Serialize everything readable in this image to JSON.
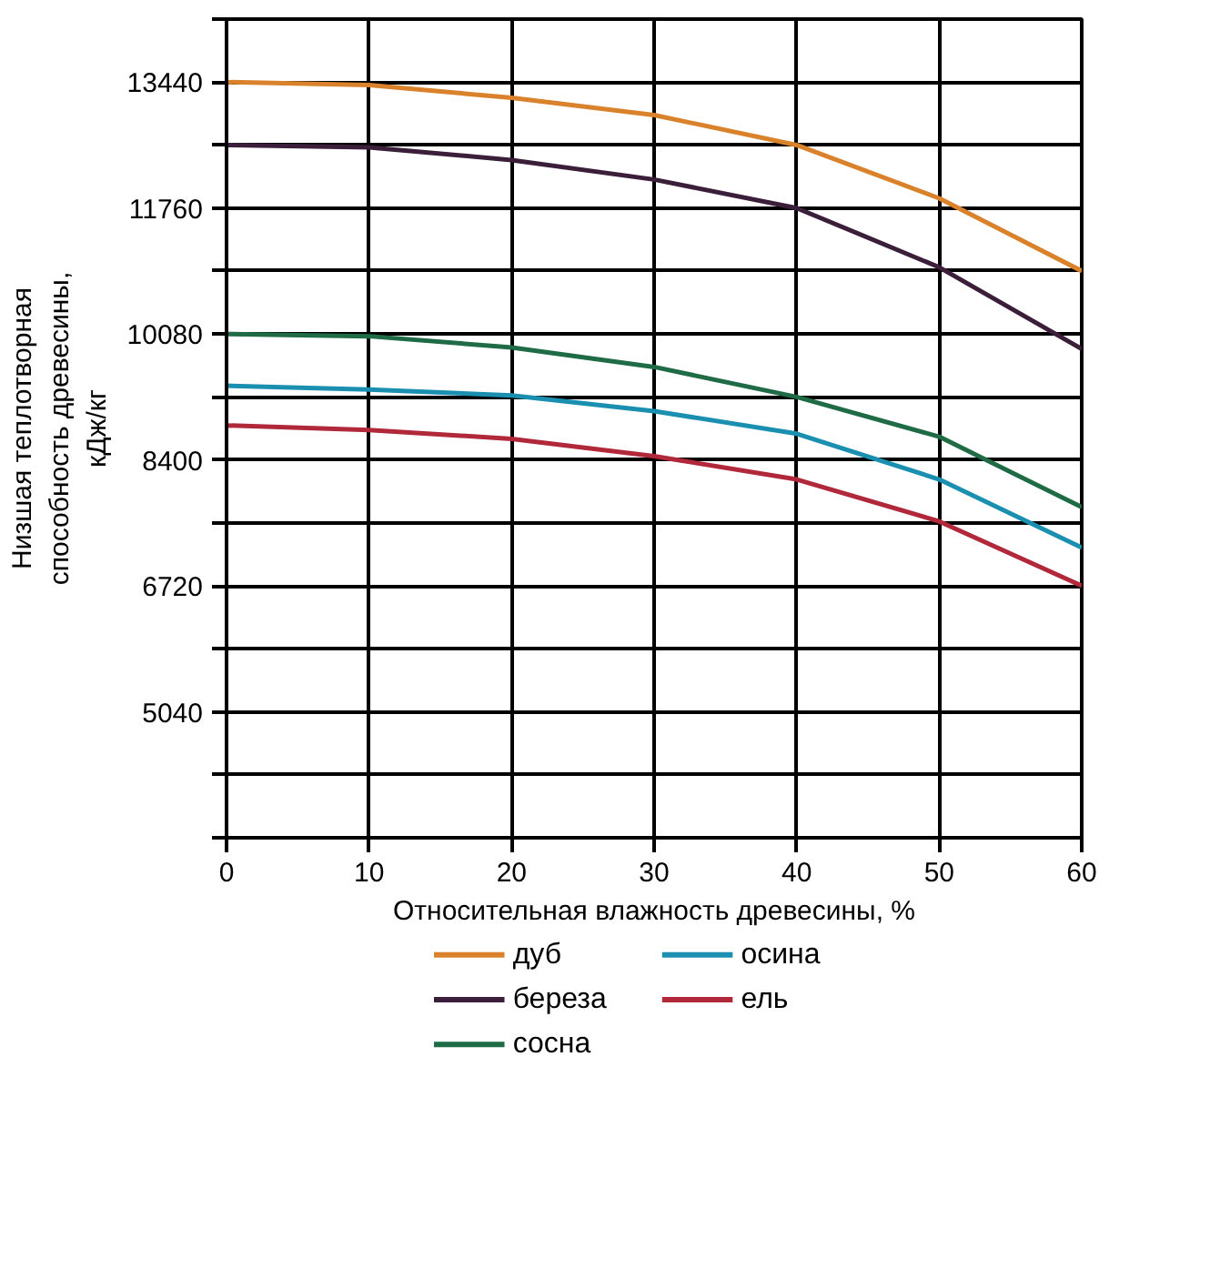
{
  "chart_data": {
    "type": "line",
    "xlabel": "Относительная влажность древесины, %",
    "ylabel": "Низшая теплотворная способность древесины, кДж/кг",
    "x": [
      0,
      10,
      20,
      30,
      40,
      50,
      60
    ],
    "series": [
      {
        "name": "дуб",
        "color": "#d9822b",
        "values": [
          13440,
          13400,
          13230,
          13000,
          12600,
          11890,
          10920
        ]
      },
      {
        "name": "береза",
        "color": "#3b1f3a",
        "values": [
          12600,
          12570,
          12400,
          12140,
          11760,
          10970,
          9880
        ]
      },
      {
        "name": "сосна",
        "color": "#1e6b45",
        "values": [
          10080,
          10050,
          9900,
          9640,
          9240,
          8710,
          7770
        ]
      },
      {
        "name": "осина",
        "color": "#1a8fb0",
        "values": [
          9390,
          9340,
          9260,
          9050,
          8750,
          8140,
          7230
        ]
      },
      {
        "name": "ель",
        "color": "#b0283a",
        "values": [
          8860,
          8800,
          8680,
          8450,
          8140,
          7580,
          6720
        ]
      }
    ],
    "xlim": [
      0,
      60
    ],
    "xticks": [
      0,
      10,
      20,
      30,
      40,
      50,
      60
    ],
    "ylim": [
      3360,
      14280
    ],
    "yticks": [
      {
        "value": 3360,
        "label": null
      },
      {
        "value": 4200,
        "label": null
      },
      5040,
      {
        "value": 5880,
        "label": null
      },
      6720,
      {
        "value": 7560,
        "label": null
      },
      8400,
      {
        "value": 9240,
        "label": null
      },
      10080,
      {
        "value": 10920,
        "label": null
      },
      11760,
      {
        "value": 12600,
        "label": null
      },
      13440,
      {
        "value": 14280,
        "label": null
      }
    ],
    "grid": true,
    "legend": "bottom",
    "marker": "none",
    "line_style": "solid"
  }
}
